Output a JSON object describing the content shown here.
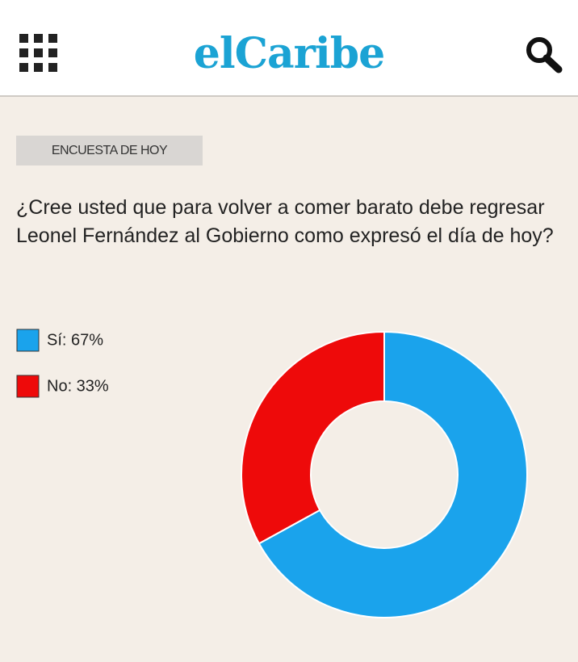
{
  "header": {
    "logo": "elCaribe"
  },
  "section_label": "ENCUESTA DE HOY",
  "question": "¿Cree usted que para volver a comer barato debe regresar Leonel Fernández al Gobierno como expresó el día de hoy?",
  "chart_data": {
    "type": "donut",
    "categories": [
      "Sí: 67%",
      "No: 33%"
    ],
    "values": [
      67,
      33
    ],
    "colors": [
      "#1aa3ec",
      "#ee0a0a"
    ]
  }
}
